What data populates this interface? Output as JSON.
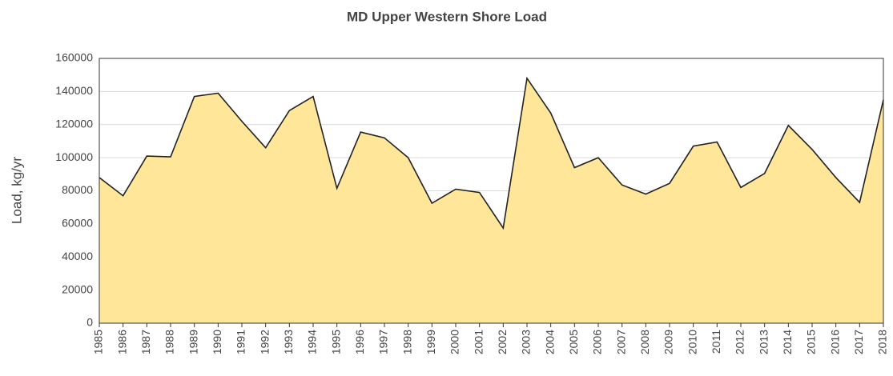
{
  "chart_data": {
    "type": "area",
    "title": "MD Upper Western Shore Load",
    "ylabel": "Load, kg/yr",
    "x": [
      "1985",
      "1986",
      "1987",
      "1988",
      "1989",
      "1990",
      "1991",
      "1992",
      "1993",
      "1994",
      "1995",
      "1996",
      "1997",
      "1998",
      "1999",
      "2000",
      "2001",
      "2002",
      "2003",
      "2004",
      "2005",
      "2006",
      "2007",
      "2008",
      "2009",
      "2010",
      "2011",
      "2012",
      "2013",
      "2014",
      "2015",
      "2016",
      "2017",
      "2018"
    ],
    "values": [
      88000,
      77000,
      101000,
      100500,
      137000,
      139000,
      122000,
      106000,
      128500,
      137000,
      81500,
      115500,
      112000,
      100000,
      72500,
      81000,
      79000,
      57500,
      148000,
      127000,
      94000,
      100000,
      83500,
      78000,
      84500,
      107000,
      109500,
      82000,
      90500,
      119500,
      105000,
      88000,
      73000,
      135000
    ],
    "color": "#ffe699",
    "line_color": "#222222",
    "ylim": [
      0,
      160000
    ],
    "yticks": [
      0,
      20000,
      40000,
      60000,
      80000,
      100000,
      120000,
      140000,
      160000
    ],
    "grid": true
  }
}
